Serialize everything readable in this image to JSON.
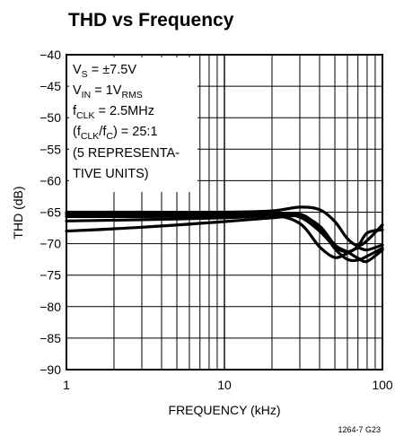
{
  "chart_data": {
    "type": "line",
    "title": "THD vs Frequency",
    "xlabel": "FREQUENCY (kHz)",
    "ylabel": "THD (dB)",
    "xscale": "log",
    "xlim": [
      1,
      100
    ],
    "ylim": [
      -90,
      -40
    ],
    "xticks": [
      1,
      10,
      100
    ],
    "xtick_labels": [
      "1",
      "10",
      "100"
    ],
    "yticks": [
      -40,
      -45,
      -50,
      -55,
      -60,
      -65,
      -70,
      -75,
      -80,
      -85,
      -90
    ],
    "ytick_labels": [
      "−40",
      "−45",
      "−50",
      "−55",
      "−60",
      "−65",
      "−70",
      "−75",
      "−80",
      "−85",
      "−90"
    ],
    "grid": true,
    "annotation": {
      "line1": {
        "main": "V",
        "sub": "S",
        "rest": " = ±7.5V"
      },
      "line2": {
        "main": "V",
        "sub": "IN",
        "rest": " = 1V",
        "sub2": "RMS"
      },
      "line3": {
        "main": "f",
        "sub": "CLK",
        "rest": " = 2.5MHz"
      },
      "line4": {
        "main": "(f",
        "sub": "CLK",
        "mid": "/f",
        "sub2": "C",
        "rest": ") = 25:1"
      },
      "line5": "(5 REPRESENTA-",
      "line6": "TIVE UNITS)"
    },
    "figure_id": "1264-7 G23",
    "series": [
      {
        "x": [
          1,
          3,
          10,
          20,
          30,
          40,
          50,
          60,
          70,
          80,
          100
        ],
        "y": [
          -65.0,
          -65.0,
          -65.0,
          -64.8,
          -64.2,
          -64.6,
          -66.5,
          -69.2,
          -70.3,
          -69.5,
          -67.0
        ]
      },
      {
        "x": [
          1,
          3,
          10,
          20,
          30,
          40,
          50,
          60,
          70,
          80,
          100
        ],
        "y": [
          -65.3,
          -65.3,
          -65.3,
          -65.1,
          -65.8,
          -68.0,
          -70.5,
          -71.3,
          -70.4,
          -68.3,
          -67.8
        ]
      },
      {
        "x": [
          1,
          3,
          10,
          20,
          30,
          40,
          50,
          60,
          70,
          80,
          100
        ],
        "y": [
          -65.7,
          -65.7,
          -65.6,
          -65.5,
          -66.8,
          -70.5,
          -72.2,
          -71.5,
          -70.7,
          -71.0,
          -70.2
        ]
      },
      {
        "x": [
          1,
          3,
          10,
          20,
          30,
          40,
          50,
          60,
          70,
          80,
          100
        ],
        "y": [
          -66.4,
          -66.2,
          -65.9,
          -65.5,
          -65.3,
          -67.5,
          -70.8,
          -72.5,
          -72.6,
          -72.0,
          -70.7
        ]
      },
      {
        "x": [
          1,
          3,
          10,
          20,
          30,
          40,
          50,
          60,
          70,
          80,
          100
        ],
        "y": [
          -68.0,
          -67.4,
          -66.5,
          -65.9,
          -65.6,
          -67.2,
          -70.2,
          -71.3,
          -72.3,
          -72.8,
          -71.0
        ]
      }
    ]
  }
}
